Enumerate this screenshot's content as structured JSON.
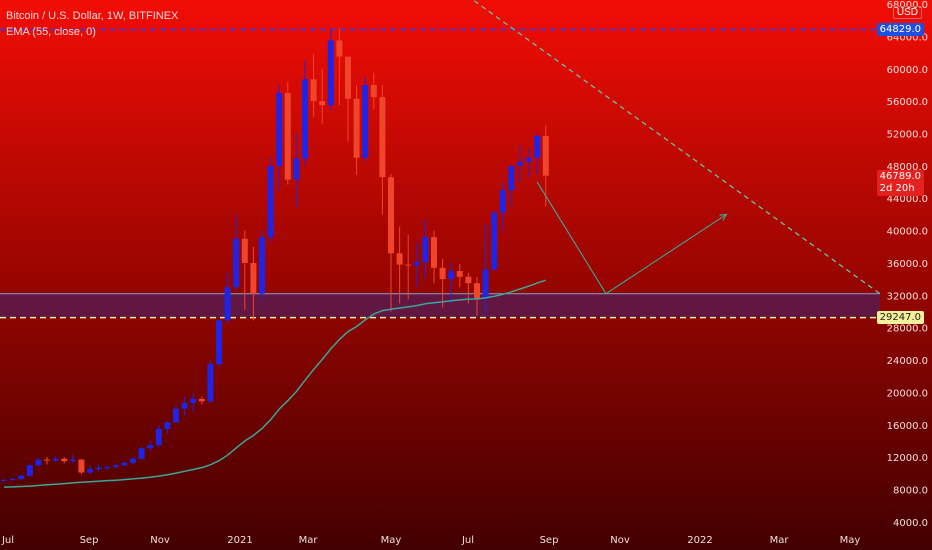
{
  "header": {
    "symbol": "Bitcoin / U.S. Dollar, 1W, BITFINEX",
    "indicator": "EMA (55, close, 0)",
    "currency": "USD"
  },
  "price_tags": {
    "top": "64829.0",
    "current": "46789.0",
    "countdown": "2d 20h",
    "support": "29247.0"
  },
  "colors": {
    "up": "#1f25e6",
    "down": "#f0442b",
    "ema": "#3aa69a",
    "trend": "#67c0a8",
    "grad_top": "#f20d06",
    "grad_bottom": "#420000",
    "tag_blue": "#1e4fe0",
    "tag_red": "#e3211f",
    "tag_yellow": "#f3f09a"
  },
  "chart_data": {
    "type": "candlestick",
    "interval": "1W",
    "ylim": [
      3000,
      68500
    ],
    "y_ticks": [
      4000,
      8000,
      12000,
      16000,
      20000,
      24000,
      28000,
      32000,
      36000,
      40000,
      44000,
      48000,
      52000,
      56000,
      60000,
      64000,
      68000
    ],
    "y_tick_labels": [
      "4000.0",
      "8000.0",
      "12000.0",
      "16000.0",
      "20000.0",
      "24000.0",
      "28000.0",
      "32000.0",
      "36000.0",
      "40000.0",
      "44000.0",
      "48000.0",
      "52000.0",
      "56000.0",
      "60000.0",
      "64000.0",
      "68000.0"
    ],
    "x_labels": [
      "Jul",
      "Sep",
      "Nov",
      "2021",
      "Mar",
      "May",
      "Jul",
      "Sep",
      "Nov",
      "2022",
      "Mar",
      "May"
    ],
    "candles": [
      [
        9100,
        9300,
        9000,
        9200
      ],
      [
        9200,
        9400,
        9050,
        9300
      ],
      [
        9300,
        9900,
        9200,
        9700
      ],
      [
        9700,
        11300,
        9600,
        11000
      ],
      [
        11000,
        11900,
        10800,
        11700
      ],
      [
        11700,
        12000,
        11100,
        11600
      ],
      [
        11600,
        12100,
        11400,
        11800
      ],
      [
        11800,
        12000,
        11200,
        11500
      ],
      [
        11500,
        12300,
        11300,
        11700
      ],
      [
        11700,
        11800,
        9900,
        10100
      ],
      [
        10100,
        11000,
        9900,
        10500
      ],
      [
        10500,
        11100,
        10300,
        10700
      ],
      [
        10700,
        11000,
        10400,
        10800
      ],
      [
        10800,
        11200,
        10600,
        11000
      ],
      [
        11000,
        11500,
        10900,
        11300
      ],
      [
        11300,
        12000,
        11100,
        11800
      ],
      [
        11800,
        13300,
        11700,
        13100
      ],
      [
        13100,
        13900,
        12800,
        13500
      ],
      [
        13500,
        15900,
        13200,
        15500
      ],
      [
        15500,
        16500,
        14900,
        16300
      ],
      [
        16300,
        18500,
        16200,
        18000
      ],
      [
        18000,
        19500,
        17200,
        18700
      ],
      [
        18700,
        19900,
        17600,
        19200
      ],
      [
        19200,
        19500,
        18500,
        18900
      ],
      [
        18900,
        24000,
        18700,
        23500
      ],
      [
        23500,
        29000,
        23200,
        28900
      ],
      [
        28900,
        34800,
        28500,
        33000
      ],
      [
        33000,
        41900,
        32500,
        39000
      ],
      [
        39000,
        40000,
        30200,
        36000
      ],
      [
        36000,
        38000,
        28900,
        32200
      ],
      [
        32200,
        40000,
        31500,
        39200
      ],
      [
        39200,
        49000,
        38500,
        48000
      ],
      [
        48000,
        58000,
        45000,
        57000
      ],
      [
        57000,
        58400,
        45700,
        46300
      ],
      [
        46300,
        52000,
        43000,
        48900
      ],
      [
        48900,
        61000,
        48000,
        58700
      ],
      [
        58700,
        61800,
        54000,
        56000
      ],
      [
        56000,
        60000,
        53200,
        55500
      ],
      [
        55500,
        64900,
        54900,
        63500
      ],
      [
        63500,
        65000,
        55500,
        61500
      ],
      [
        61500,
        61000,
        51000,
        56300
      ],
      [
        56300,
        58000,
        46900,
        49000
      ],
      [
        49000,
        59000,
        48500,
        58000
      ],
      [
        58000,
        59500,
        55000,
        56500
      ],
      [
        56500,
        58000,
        42000,
        46600
      ],
      [
        46600,
        47000,
        30000,
        37200
      ],
      [
        37200,
        40500,
        31000,
        35800
      ],
      [
        35800,
        39500,
        31500,
        35700
      ],
      [
        35700,
        38500,
        33000,
        36100
      ],
      [
        36100,
        41300,
        34000,
        39200
      ],
      [
        39200,
        40000,
        33500,
        35400
      ],
      [
        35400,
        36500,
        30500,
        34000
      ],
      [
        34000,
        36000,
        31000,
        35000
      ],
      [
        35000,
        35900,
        33000,
        34300
      ],
      [
        34300,
        34800,
        31000,
        33500
      ],
      [
        33500,
        34300,
        29500,
        31600
      ],
      [
        31600,
        40800,
        29600,
        35200
      ],
      [
        35200,
        42400,
        35000,
        42200
      ],
      [
        42200,
        46000,
        40000,
        45000
      ],
      [
        45000,
        48000,
        43000,
        48000
      ],
      [
        48000,
        50500,
        46000,
        48500
      ],
      [
        48500,
        50200,
        46600,
        49000
      ],
      [
        49000,
        52000,
        47000,
        51700
      ],
      [
        51700,
        53000,
        43000,
        46789
      ]
    ],
    "ema_55": [
      8300,
      8330,
      8370,
      8430,
      8500,
      8580,
      8660,
      8740,
      8820,
      8900,
      8960,
      9030,
      9100,
      9160,
      9230,
      9310,
      9410,
      9520,
      9660,
      9830,
      10030,
      10250,
      10480,
      10710,
      11060,
      11560,
      12250,
      13150,
      14000,
      14680,
      15550,
      16630,
      17940,
      18980,
      20120,
      21500,
      22830,
      24070,
      25380,
      26560,
      27520,
      28150,
      28960,
      29690,
      30110,
      30290,
      30430,
      30570,
      30730,
      30950,
      31090,
      31190,
      31330,
      31440,
      31530,
      31550,
      31680,
      31880,
      32120,
      32440,
      32780,
      33130,
      33510,
      33870
    ],
    "horizontal_levels": [
      {
        "value": 64829,
        "style": "dashed",
        "color": "blue"
      },
      {
        "value": 29247,
        "style": "dashed",
        "color": "yellow"
      }
    ],
    "support_zone": [
      29247,
      32200
    ],
    "trendline": [
      [
        36,
        67900
      ],
      [
        68,
        32200
      ]
    ],
    "projection": [
      [
        62,
        46000
      ],
      [
        70,
        32200
      ],
      [
        84,
        42000
      ]
    ]
  }
}
